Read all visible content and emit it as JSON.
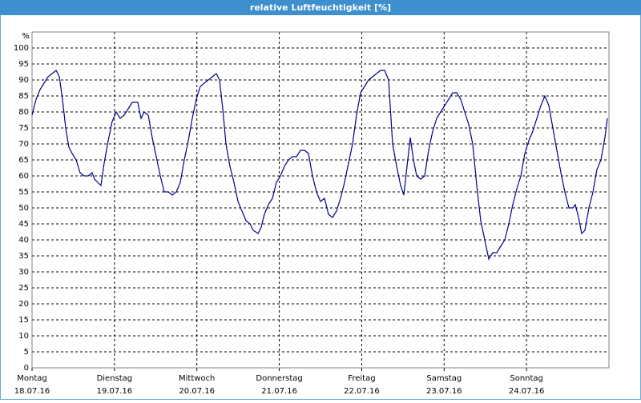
{
  "chart_data": {
    "type": "line",
    "title": "relative Luftfeuchtigkeit [%]",
    "y_label": "%",
    "color": "#00008b",
    "grid": true,
    "xlim": [
      0,
      7
    ],
    "ylim": [
      0,
      105
    ],
    "xticks": [
      {
        "value": 0,
        "label": [
          "Montag",
          "18.07.16"
        ]
      },
      {
        "value": 1,
        "label": [
          "Dienstag",
          "19.07.16"
        ]
      },
      {
        "value": 2,
        "label": [
          "Mittwoch",
          "20.07.16"
        ]
      },
      {
        "value": 3,
        "label": [
          "Donnerstag",
          "21.07.16"
        ]
      },
      {
        "value": 4,
        "label": [
          "Freitag",
          "22.07.16"
        ]
      },
      {
        "value": 5,
        "label": [
          "Samstag",
          "23.07.16"
        ]
      },
      {
        "value": 6,
        "label": [
          "Sonntag",
          "24.07.16"
        ]
      }
    ],
    "yticks": [
      0,
      5,
      10,
      15,
      20,
      25,
      30,
      35,
      40,
      45,
      50,
      55,
      60,
      65,
      70,
      75,
      80,
      85,
      90,
      95,
      100
    ],
    "x": [
      0,
      0.049,
      0.097,
      0.146,
      0.194,
      0.243,
      0.292,
      0.331,
      0.369,
      0.408,
      0.447,
      0.486,
      0.535,
      0.583,
      0.632,
      0.681,
      0.729,
      0.758,
      0.797,
      0.836,
      0.875,
      0.924,
      0.972,
      1.021,
      1.069,
      1.118,
      1.167,
      1.215,
      1.283,
      1.322,
      1.361,
      1.41,
      1.458,
      1.507,
      1.556,
      1.604,
      1.653,
      1.701,
      1.75,
      1.799,
      1.847,
      1.896,
      1.944,
      1.993,
      2.042,
      2.09,
      2.139,
      2.188,
      2.236,
      2.275,
      2.314,
      2.353,
      2.401,
      2.45,
      2.499,
      2.547,
      2.596,
      2.644,
      2.683,
      2.742,
      2.781,
      2.819,
      2.868,
      2.917,
      2.965,
      3.014,
      3.062,
      3.111,
      3.16,
      3.208,
      3.257,
      3.306,
      3.354,
      3.403,
      3.451,
      3.5,
      3.549,
      3.597,
      3.646,
      3.694,
      3.743,
      3.792,
      3.84,
      3.889,
      3.937,
      3.986,
      4.035,
      4.083,
      4.132,
      4.181,
      4.229,
      4.278,
      4.326,
      4.375,
      4.424,
      4.472,
      4.511,
      4.55,
      4.589,
      4.628,
      4.667,
      4.715,
      4.764,
      4.812,
      4.861,
      4.91,
      4.958,
      5.007,
      5.056,
      5.104,
      5.153,
      5.201,
      5.25,
      5.299,
      5.347,
      5.396,
      5.444,
      5.493,
      5.542,
      5.59,
      5.639,
      5.687,
      5.736,
      5.785,
      5.833,
      5.882,
      5.931,
      5.979,
      6.028,
      6.076,
      6.125,
      6.174,
      6.222,
      6.271,
      6.319,
      6.368,
      6.417,
      6.465,
      6.514,
      6.562,
      6.592,
      6.631,
      6.669,
      6.708,
      6.757,
      6.806,
      6.854,
      6.903,
      6.951,
      6.981
    ],
    "values": [
      79,
      84,
      87,
      89,
      91,
      92,
      93,
      91,
      84,
      75,
      69,
      67,
      65,
      61,
      60,
      60,
      61,
      59,
      58,
      57,
      64,
      71,
      77,
      80,
      78,
      79,
      81,
      83,
      83,
      78,
      80,
      79,
      72,
      66,
      60,
      55,
      55,
      54,
      55,
      58,
      65,
      71,
      78,
      84,
      88,
      89,
      90,
      91,
      92,
      90,
      81,
      70,
      63,
      58,
      52,
      49,
      46,
      45,
      43,
      42,
      44,
      48,
      51,
      53,
      58,
      60,
      63,
      65,
      66,
      66,
      68,
      68,
      67,
      60,
      55,
      52,
      53,
      48,
      47,
      49,
      53,
      58,
      64,
      70,
      79,
      86,
      88,
      90,
      91,
      92,
      93,
      93,
      90,
      70,
      63,
      57,
      54,
      63,
      72,
      65,
      60,
      59,
      60,
      68,
      74,
      78,
      80,
      82,
      84,
      86,
      86,
      84,
      80,
      76,
      70,
      57,
      46,
      40,
      34,
      36,
      36,
      38,
      40,
      45,
      51,
      56,
      60,
      67,
      71,
      74,
      78,
      82,
      85,
      82,
      75,
      68,
      61,
      55,
      50,
      50,
      51,
      47,
      42,
      43,
      50,
      55,
      62,
      65,
      72,
      78
    ]
  }
}
